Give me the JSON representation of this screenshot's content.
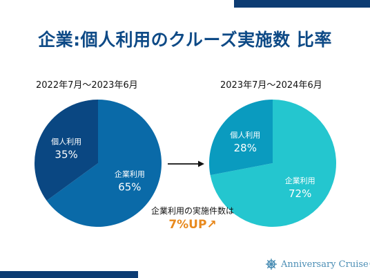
{
  "title": "企業:個人利用のクルーズ実施数 比率",
  "chart_data": [
    {
      "type": "pie",
      "title": "2022年7月〜2023年6月",
      "slices": [
        {
          "label": "企業利用",
          "value": 65,
          "display": "65%",
          "color": "#0a6aa8"
        },
        {
          "label": "個人利用",
          "value": 35,
          "display": "35%",
          "color": "#0a4782"
        }
      ]
    },
    {
      "type": "pie",
      "title": "2023年7月〜2024年6月",
      "slices": [
        {
          "label": "企業利用",
          "value": 72,
          "display": "72%",
          "color": "#24c6cf"
        },
        {
          "label": "個人利用",
          "value": 28,
          "display": "28%",
          "color": "#0a9bbf"
        }
      ]
    }
  ],
  "annotation": {
    "text": "企業利用の実施件数は",
    "highlight": "7%UP↗"
  },
  "brand": {
    "name": "Anniversary Cruise®",
    "icon": "ship-wheel-icon",
    "color": "#4a8db4"
  }
}
